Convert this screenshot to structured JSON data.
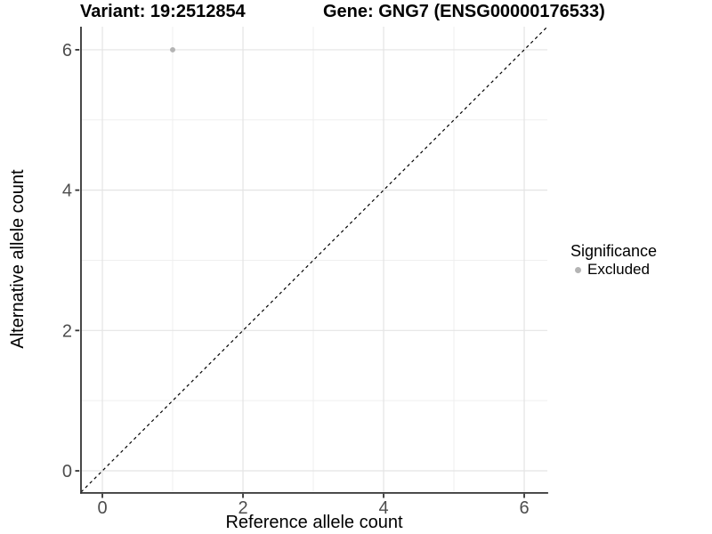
{
  "figure": {
    "title_left": "Variant: 19:2512854",
    "title_right": "Gene: GNG7 (ENSG00000176533)"
  },
  "axes": {
    "x_label": "Reference allele count",
    "y_label": "Alternative allele count",
    "x_tick_labels": [
      "0",
      "2",
      "4",
      "6"
    ],
    "y_tick_labels": [
      "0",
      "2",
      "4",
      "6"
    ]
  },
  "legend": {
    "title": "Significance",
    "items": [
      {
        "label": "Excluded",
        "color": "#b4b4b4"
      }
    ]
  },
  "colors": {
    "point": "#b4b4b4",
    "grid_major": "#e4e4e4",
    "grid_minor": "#efefef",
    "axis_line": "#333333",
    "tick_label": "#4d4d4d",
    "identity_line": "#000000"
  },
  "chart_data": {
    "type": "scatter",
    "title": "Variant: 19:2512854   Gene: GNG7 (ENSG00000176533)",
    "xlabel": "Reference allele count",
    "ylabel": "Alternative allele count",
    "xlim": [
      -0.304,
      6.329
    ],
    "ylim": [
      -0.304,
      6.329
    ],
    "x_breaks": [
      0,
      2,
      4,
      6
    ],
    "y_breaks": [
      0,
      2,
      4,
      6
    ],
    "x_minor_breaks": [
      1,
      3,
      5
    ],
    "y_minor_breaks": [
      1,
      3,
      5
    ],
    "grid": true,
    "legend_position": "right",
    "series": [
      {
        "name": "Excluded",
        "color": "#b4b4b4",
        "points": [
          {
            "x": 1,
            "y": 6
          }
        ]
      }
    ],
    "reference_line": {
      "type": "abline",
      "slope": 1,
      "intercept": 0,
      "style": "dashed"
    }
  }
}
